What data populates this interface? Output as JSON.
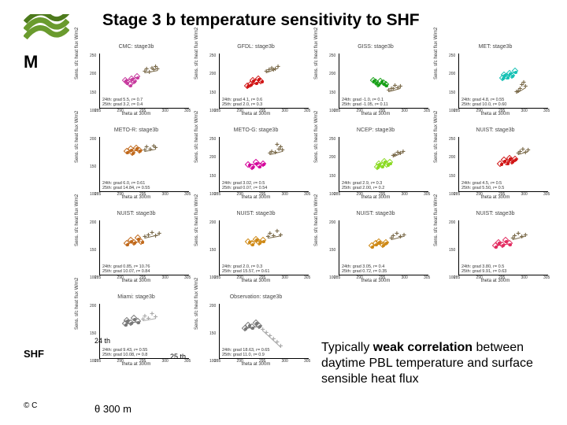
{
  "title": "Stage 3 b temperature sensitivity to SHF",
  "logo": {
    "colors": [
      "#6a9b2e",
      "#4d7a1c"
    ]
  },
  "letterM": "M",
  "copyright": "© C",
  "side": {
    "shf": "SHF",
    "d24": "24 th",
    "d25": "25 th",
    "theta": "θ 300 m"
  },
  "summary_lines": [
    "Typically ",
    "weak correlation",
    " between daytime PBL temperature and surface sensible heat flux"
  ],
  "axis": {
    "xlabel": "theta at 300m",
    "ylabel": "Sens. sfc heat flux W/m2"
  },
  "common_xticks": [
    285,
    290,
    295,
    300,
    305
  ],
  "panels": [
    {
      "title": "CMC: stage3b",
      "color24": "#c73a9e",
      "color25": "#7a6a4a",
      "ylim": [
        100,
        250
      ],
      "yticks": [
        100,
        150,
        200,
        250
      ],
      "annot": [
        "24th: grad  5.5, r= 0.7",
        "25th: grad  3.2, r= 0.4"
      ],
      "pts24": [
        [
          0.3,
          0.48
        ],
        [
          0.33,
          0.44
        ],
        [
          0.35,
          0.55
        ],
        [
          0.38,
          0.5
        ],
        [
          0.41,
          0.58
        ],
        [
          0.28,
          0.52
        ]
      ],
      "pts25": [
        [
          0.52,
          0.7
        ],
        [
          0.55,
          0.65
        ],
        [
          0.58,
          0.72
        ],
        [
          0.6,
          0.68
        ],
        [
          0.62,
          0.74
        ],
        [
          0.5,
          0.66
        ],
        [
          0.64,
          0.7
        ]
      ]
    },
    {
      "title": "GFDL: stage3b",
      "color24": "#d01414",
      "color25": "#7a6a4a",
      "ylim": [
        100,
        250
      ],
      "yticks": [
        100,
        150,
        200,
        250
      ],
      "annot": [
        "24th: grad  4.1, r= 0.6",
        "25th: grad  2.0, r= 0.3"
      ],
      "pts24": [
        [
          0.34,
          0.45
        ],
        [
          0.37,
          0.52
        ],
        [
          0.4,
          0.48
        ],
        [
          0.43,
          0.55
        ],
        [
          0.46,
          0.5
        ],
        [
          0.31,
          0.42
        ]
      ],
      "pts25": [
        [
          0.55,
          0.68
        ],
        [
          0.58,
          0.72
        ],
        [
          0.62,
          0.7
        ],
        [
          0.65,
          0.74
        ],
        [
          0.52,
          0.66
        ],
        [
          0.6,
          0.69
        ]
      ]
    },
    {
      "title": "GISS: stage3b",
      "color24": "#17a017",
      "color25": "#7a6a4a",
      "ylim": [
        100,
        250
      ],
      "yticks": [
        100,
        150,
        200,
        250
      ],
      "annot": [
        "24th: grad  -1.0, r= 0.1",
        "25th: grad  -1.05, r= 0.11"
      ],
      "pts24": [
        [
          0.4,
          0.48
        ],
        [
          0.43,
          0.45
        ],
        [
          0.46,
          0.5
        ],
        [
          0.49,
          0.47
        ],
        [
          0.38,
          0.52
        ],
        [
          0.52,
          0.44
        ]
      ],
      "pts25": [
        [
          0.58,
          0.34
        ],
        [
          0.62,
          0.4
        ],
        [
          0.65,
          0.36
        ],
        [
          0.55,
          0.32
        ],
        [
          0.68,
          0.38
        ],
        [
          0.6,
          0.35
        ]
      ]
    },
    {
      "title": "MET: stage3b",
      "color24": "#14c1b4",
      "color25": "#7a6a4a",
      "ylim": [
        100,
        250
      ],
      "yticks": [
        100,
        150,
        200,
        250
      ],
      "annot": [
        "24th: grad  4.8, r= 0.55",
        "25th: grad 10.0, r= 0.60"
      ],
      "pts24": [
        [
          0.5,
          0.62
        ],
        [
          0.53,
          0.58
        ],
        [
          0.56,
          0.65
        ],
        [
          0.59,
          0.6
        ],
        [
          0.62,
          0.68
        ],
        [
          0.48,
          0.56
        ]
      ],
      "pts25": [
        [
          0.66,
          0.3
        ],
        [
          0.7,
          0.42
        ],
        [
          0.74,
          0.38
        ],
        [
          0.68,
          0.34
        ],
        [
          0.72,
          0.46
        ],
        [
          0.64,
          0.28
        ]
      ]
    },
    {
      "title": "METO-R: stage3b",
      "color24": "#c0681a",
      "color25": "#7a6a4a",
      "ylim": [
        100,
        200
      ],
      "yticks": [
        100,
        150,
        200
      ],
      "annot": [
        "24th: grad  6.0, r= 0.61",
        "25th: grad 14.84, r= 0.55"
      ],
      "pts24": [
        [
          0.34,
          0.78
        ],
        [
          0.36,
          0.72
        ],
        [
          0.4,
          0.8
        ],
        [
          0.44,
          0.76
        ],
        [
          0.3,
          0.74
        ]
      ],
      "pts25": [
        [
          0.52,
          0.8
        ],
        [
          0.56,
          0.76
        ],
        [
          0.6,
          0.82
        ],
        [
          0.62,
          0.78
        ],
        [
          0.5,
          0.74
        ]
      ]
    },
    {
      "title": "METO-G: stage3b",
      "color24": "#d4029a",
      "color25": "#7a6a4a",
      "ylim": [
        100,
        250
      ],
      "yticks": [
        100,
        150,
        200,
        250
      ],
      "annot": [
        "24th: grad  3.02, r= 0.5",
        "25th: grad  0.07, r= 0.54"
      ],
      "pts24": [
        [
          0.32,
          0.5
        ],
        [
          0.36,
          0.46
        ],
        [
          0.4,
          0.54
        ],
        [
          0.44,
          0.48
        ],
        [
          0.48,
          0.52
        ]
      ],
      "pts25": [
        [
          0.58,
          0.72
        ],
        [
          0.62,
          0.7
        ],
        [
          0.66,
          0.76
        ],
        [
          0.7,
          0.74
        ],
        [
          0.56,
          0.68
        ],
        [
          0.64,
          0.84
        ],
        [
          0.68,
          0.8
        ]
      ]
    },
    {
      "title": "NCEP: stage3b",
      "color24": "#8ada22",
      "color25": "#7a6a4a",
      "ylim": [
        100,
        250
      ],
      "yticks": [
        100,
        150,
        200,
        250
      ],
      "annot": [
        "24th: grad  2.9, r= 0.3",
        "25th: grad  2.00, r= 0.2"
      ],
      "pts24": [
        [
          0.44,
          0.52
        ],
        [
          0.47,
          0.48
        ],
        [
          0.5,
          0.56
        ],
        [
          0.53,
          0.5
        ],
        [
          0.56,
          0.54
        ],
        [
          0.42,
          0.46
        ]
      ],
      "pts25": [
        [
          0.62,
          0.66
        ],
        [
          0.65,
          0.7
        ],
        [
          0.68,
          0.68
        ],
        [
          0.71,
          0.72
        ],
        [
          0.6,
          0.64
        ]
      ]
    },
    {
      "title": "NUIST: stage3b",
      "color24": "#d01414",
      "color25": "#7a6a4a",
      "ylim": [
        100,
        250
      ],
      "yticks": [
        100,
        150,
        200,
        250
      ],
      "annot": [
        "24th: grad  4.5, r= 0.5",
        "25th: grad  5.50, r= 0.5"
      ],
      "pts24": [
        [
          0.5,
          0.58
        ],
        [
          0.53,
          0.54
        ],
        [
          0.56,
          0.62
        ],
        [
          0.59,
          0.56
        ],
        [
          0.46,
          0.52
        ],
        [
          0.62,
          0.6
        ]
      ],
      "pts25": [
        [
          0.68,
          0.72
        ],
        [
          0.71,
          0.76
        ],
        [
          0.74,
          0.7
        ],
        [
          0.66,
          0.68
        ],
        [
          0.77,
          0.74
        ]
      ]
    },
    {
      "title": "NUIST: stage3b",
      "color24": "#c0681a",
      "color25": "#7a6a4a",
      "ylim": [
        100,
        200
      ],
      "yticks": [
        100,
        150,
        200
      ],
      "annot": [
        "24th: grad  0.85, r= 10.76",
        "25th: grad 10.07, r= 0.84"
      ],
      "pts24": [
        [
          0.34,
          0.64
        ],
        [
          0.38,
          0.6
        ],
        [
          0.42,
          0.68
        ],
        [
          0.46,
          0.62
        ],
        [
          0.3,
          0.58
        ]
      ],
      "pts25": [
        [
          0.54,
          0.72
        ],
        [
          0.58,
          0.76
        ],
        [
          0.62,
          0.7
        ],
        [
          0.66,
          0.74
        ],
        [
          0.5,
          0.68
        ]
      ]
    },
    {
      "title": "NUIST: stage3b",
      "color24": "#ce8814",
      "color25": "#7a6a4a",
      "ylim": [
        100,
        200
      ],
      "yticks": [
        100,
        150,
        200
      ],
      "annot": [
        "24th: grad  2.0, r= 0.3",
        "25th: grad 15.57, r= 0.61"
      ],
      "pts24": [
        [
          0.32,
          0.62
        ],
        [
          0.36,
          0.58
        ],
        [
          0.4,
          0.66
        ],
        [
          0.44,
          0.6
        ],
        [
          0.48,
          0.64
        ]
      ],
      "pts25": [
        [
          0.56,
          0.74
        ],
        [
          0.6,
          0.7
        ],
        [
          0.64,
          0.78
        ],
        [
          0.68,
          0.72
        ],
        [
          0.54,
          0.68
        ]
      ]
    },
    {
      "title": "NUIST: stage3b",
      "color24": "#ce8814",
      "color25": "#7a6a4a",
      "ylim": [
        100,
        200
      ],
      "yticks": [
        100,
        150,
        200
      ],
      "annot": [
        "24th: grad  3.05, r= 0.4",
        "25th: grad  0.72, r= 0.35"
      ],
      "pts24": [
        [
          0.4,
          0.58
        ],
        [
          0.44,
          0.62
        ],
        [
          0.48,
          0.56
        ],
        [
          0.52,
          0.6
        ],
        [
          0.36,
          0.54
        ]
      ],
      "pts25": [
        [
          0.6,
          0.7
        ],
        [
          0.64,
          0.74
        ],
        [
          0.68,
          0.68
        ],
        [
          0.72,
          0.72
        ],
        [
          0.58,
          0.66
        ]
      ]
    },
    {
      "title": "NUIST: stage3b",
      "color24": "#e22c60",
      "color25": "#7a6a4a",
      "ylim": [
        100,
        200
      ],
      "yticks": [
        100,
        150,
        200
      ],
      "annot": [
        "24th: grad  3.80, r= 0.5",
        "25th: grad  9.91, r= 0.63"
      ],
      "pts24": [
        [
          0.44,
          0.6
        ],
        [
          0.48,
          0.56
        ],
        [
          0.52,
          0.64
        ],
        [
          0.56,
          0.58
        ],
        [
          0.4,
          0.54
        ]
      ],
      "pts25": [
        [
          0.62,
          0.7
        ],
        [
          0.66,
          0.74
        ],
        [
          0.7,
          0.68
        ],
        [
          0.74,
          0.72
        ],
        [
          0.6,
          0.66
        ]
      ]
    },
    {
      "title": "Miami: stage3b",
      "color24": "#777777",
      "color25": "#aaaaaa",
      "ylim": [
        100,
        200
      ],
      "yticks": [
        100,
        150,
        200
      ],
      "annot": [
        "24th: grad  9.43, r= 0.55",
        "25th: grad 10.08, r= 0.8"
      ],
      "pts24": [
        [
          0.3,
          0.7
        ],
        [
          0.34,
          0.66
        ],
        [
          0.38,
          0.74
        ],
        [
          0.42,
          0.68
        ],
        [
          0.28,
          0.64
        ]
      ],
      "pts25": [
        [
          0.5,
          0.76
        ],
        [
          0.54,
          0.72
        ],
        [
          0.58,
          0.8
        ],
        [
          0.62,
          0.74
        ],
        [
          0.48,
          0.7
        ]
      ]
    },
    {
      "title": "Observation: stage3b",
      "color24": "#777777",
      "color25": "#aaaaaa",
      "ylim": [
        100,
        200
      ],
      "yticks": [
        100,
        150,
        200
      ],
      "annot": [
        "24th: grad 18.63, r= 0.65",
        "25th: grad 11.0, r= 0.9"
      ],
      "pts24": [
        [
          0.32,
          0.62
        ],
        [
          0.36,
          0.58
        ],
        [
          0.4,
          0.66
        ],
        [
          0.44,
          0.6
        ],
        [
          0.28,
          0.56
        ]
      ],
      "pts25": [
        [
          0.52,
          0.46
        ],
        [
          0.56,
          0.4
        ],
        [
          0.6,
          0.34
        ],
        [
          0.64,
          0.28
        ],
        [
          0.48,
          0.52
        ],
        [
          0.68,
          0.22
        ]
      ]
    }
  ]
}
